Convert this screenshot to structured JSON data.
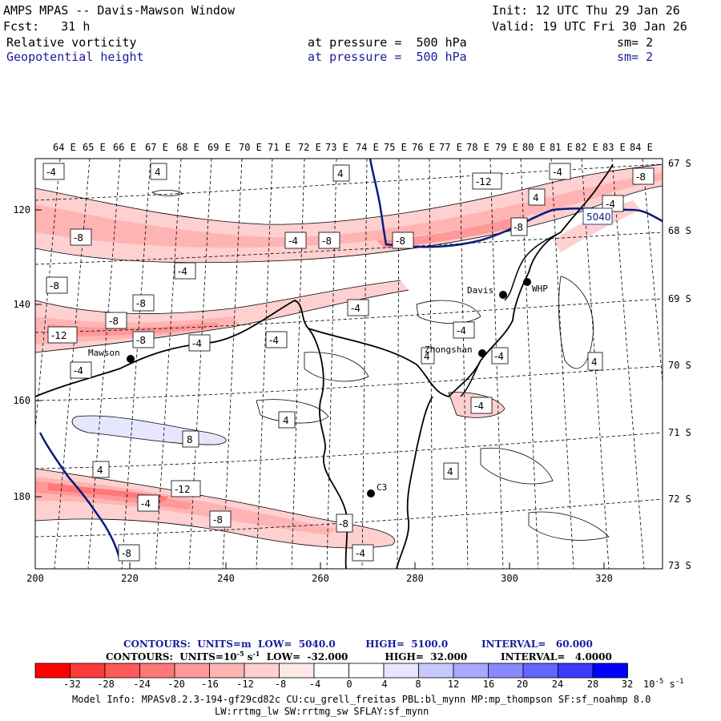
{
  "header": {
    "title": "AMPS MPAS -- Davis-Mawson Window",
    "init": "Init: 12 UTC Thu 29 Jan 26",
    "fcst": "Fcst:   31 h",
    "valid": "Valid: 19 UTC Fri 30 Jan 26",
    "field1": {
      "name": "Relative vorticity",
      "level": "at pressure =  500 hPa",
      "sm": "sm= 2"
    },
    "field2": {
      "name": "Geopotential height",
      "level": "at pressure =  500 hPa",
      "sm": "sm= 2"
    }
  },
  "axes": {
    "top_lon": [
      "64 E",
      "65 E",
      "66 E",
      "67 E",
      "68 E",
      "69 E",
      "70 E",
      "71 E",
      "72 E",
      "73 E",
      "74 E",
      "75 E",
      "76 E",
      "77 E",
      "78 E",
      "79 E",
      "80 E",
      "81 E",
      "82 E",
      "83 E",
      "84 E"
    ],
    "right_lat": [
      "67 S",
      "68 S",
      "69 S",
      "70 S",
      "71 S",
      "72 S",
      "73 S"
    ],
    "left_y": [
      "120",
      "140",
      "160",
      "180"
    ],
    "bottom_x": [
      "200",
      "220",
      "240",
      "260",
      "280",
      "300",
      "320"
    ]
  },
  "stations": [
    "Mawson",
    "Davis",
    "WHP",
    "Zhongshan",
    "C3"
  ],
  "height_label": "5040",
  "contour_labels": {
    "neg4": "-4",
    "neg8": "-8",
    "neg12": "-12",
    "pos4": "4",
    "pos8": "8"
  },
  "legend": {
    "line1": "CONTOURS:  UNITS=m  LOW=  5040.0         HIGH=  5100.0          INTERVAL=   60.000",
    "line2": "CONTOURS:  UNITS=10",
    "line2_exp": "-5",
    "line2_unit": " s",
    "line2_unit_exp": "-1",
    "line2_rest": "  LOW=  -32.000           HIGH=  32.000          INTERVAL=   4.0000",
    "ticks": [
      "-32",
      "-28",
      "-24",
      "-20",
      "-16",
      "-12",
      "-8",
      "-4",
      "0",
      "4",
      "8",
      "12",
      "16",
      "20",
      "24",
      "28",
      "32"
    ],
    "unit": "10",
    "unit_exp": "-5",
    "unit_s": " s",
    "unit_s_exp": "-1",
    "colors": [
      "#ff0000",
      "#ff3a3a",
      "#ff5a5a",
      "#ff7878",
      "#ff9898",
      "#ffb4b4",
      "#ffd0d0",
      "#ffe8e8",
      "#ffffff",
      "#ffffff",
      "#e6e6ff",
      "#c8c8ff",
      "#a8a8ff",
      "#8888ff",
      "#6464ff",
      "#3c3cff",
      "#0000ff"
    ]
  },
  "footer": {
    "line1": "Model Info: MPASv8.2.3-194-gf29cd82c CU:cu_grell_freitas PBL:bl_mynn MP:mp_thompson SF:sf_noahmp 8.0",
    "line2": "LW:rrtmg_lw SW:rrtmg_sw SFLAY:sf_mynn"
  }
}
